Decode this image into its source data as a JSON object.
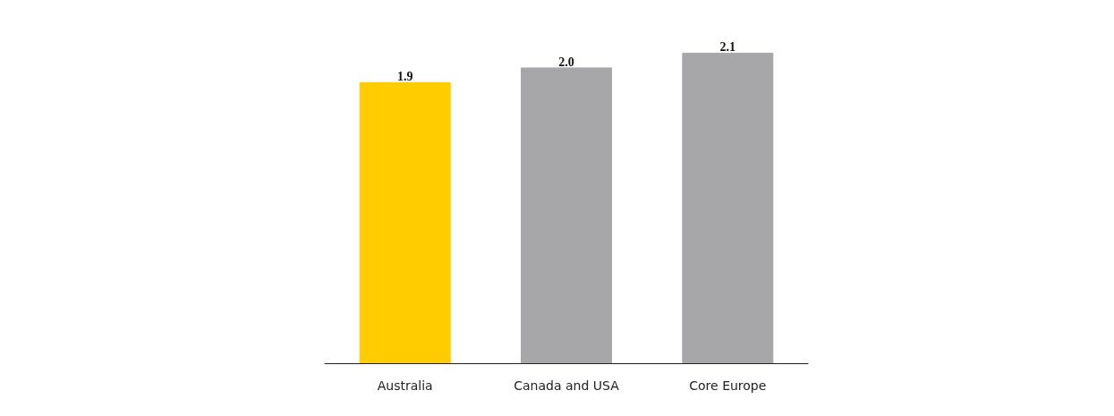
{
  "chart_data": {
    "type": "bar",
    "categories": [
      "Australia",
      "Canada and USA",
      "Core Europe"
    ],
    "values": [
      1.9,
      2.0,
      2.1
    ],
    "colors": [
      "#ffcc00",
      "#a7a7a9",
      "#a7a7a9"
    ],
    "value_labels": [
      "1.9",
      "2.0",
      "2.1"
    ],
    "grid": false
  }
}
